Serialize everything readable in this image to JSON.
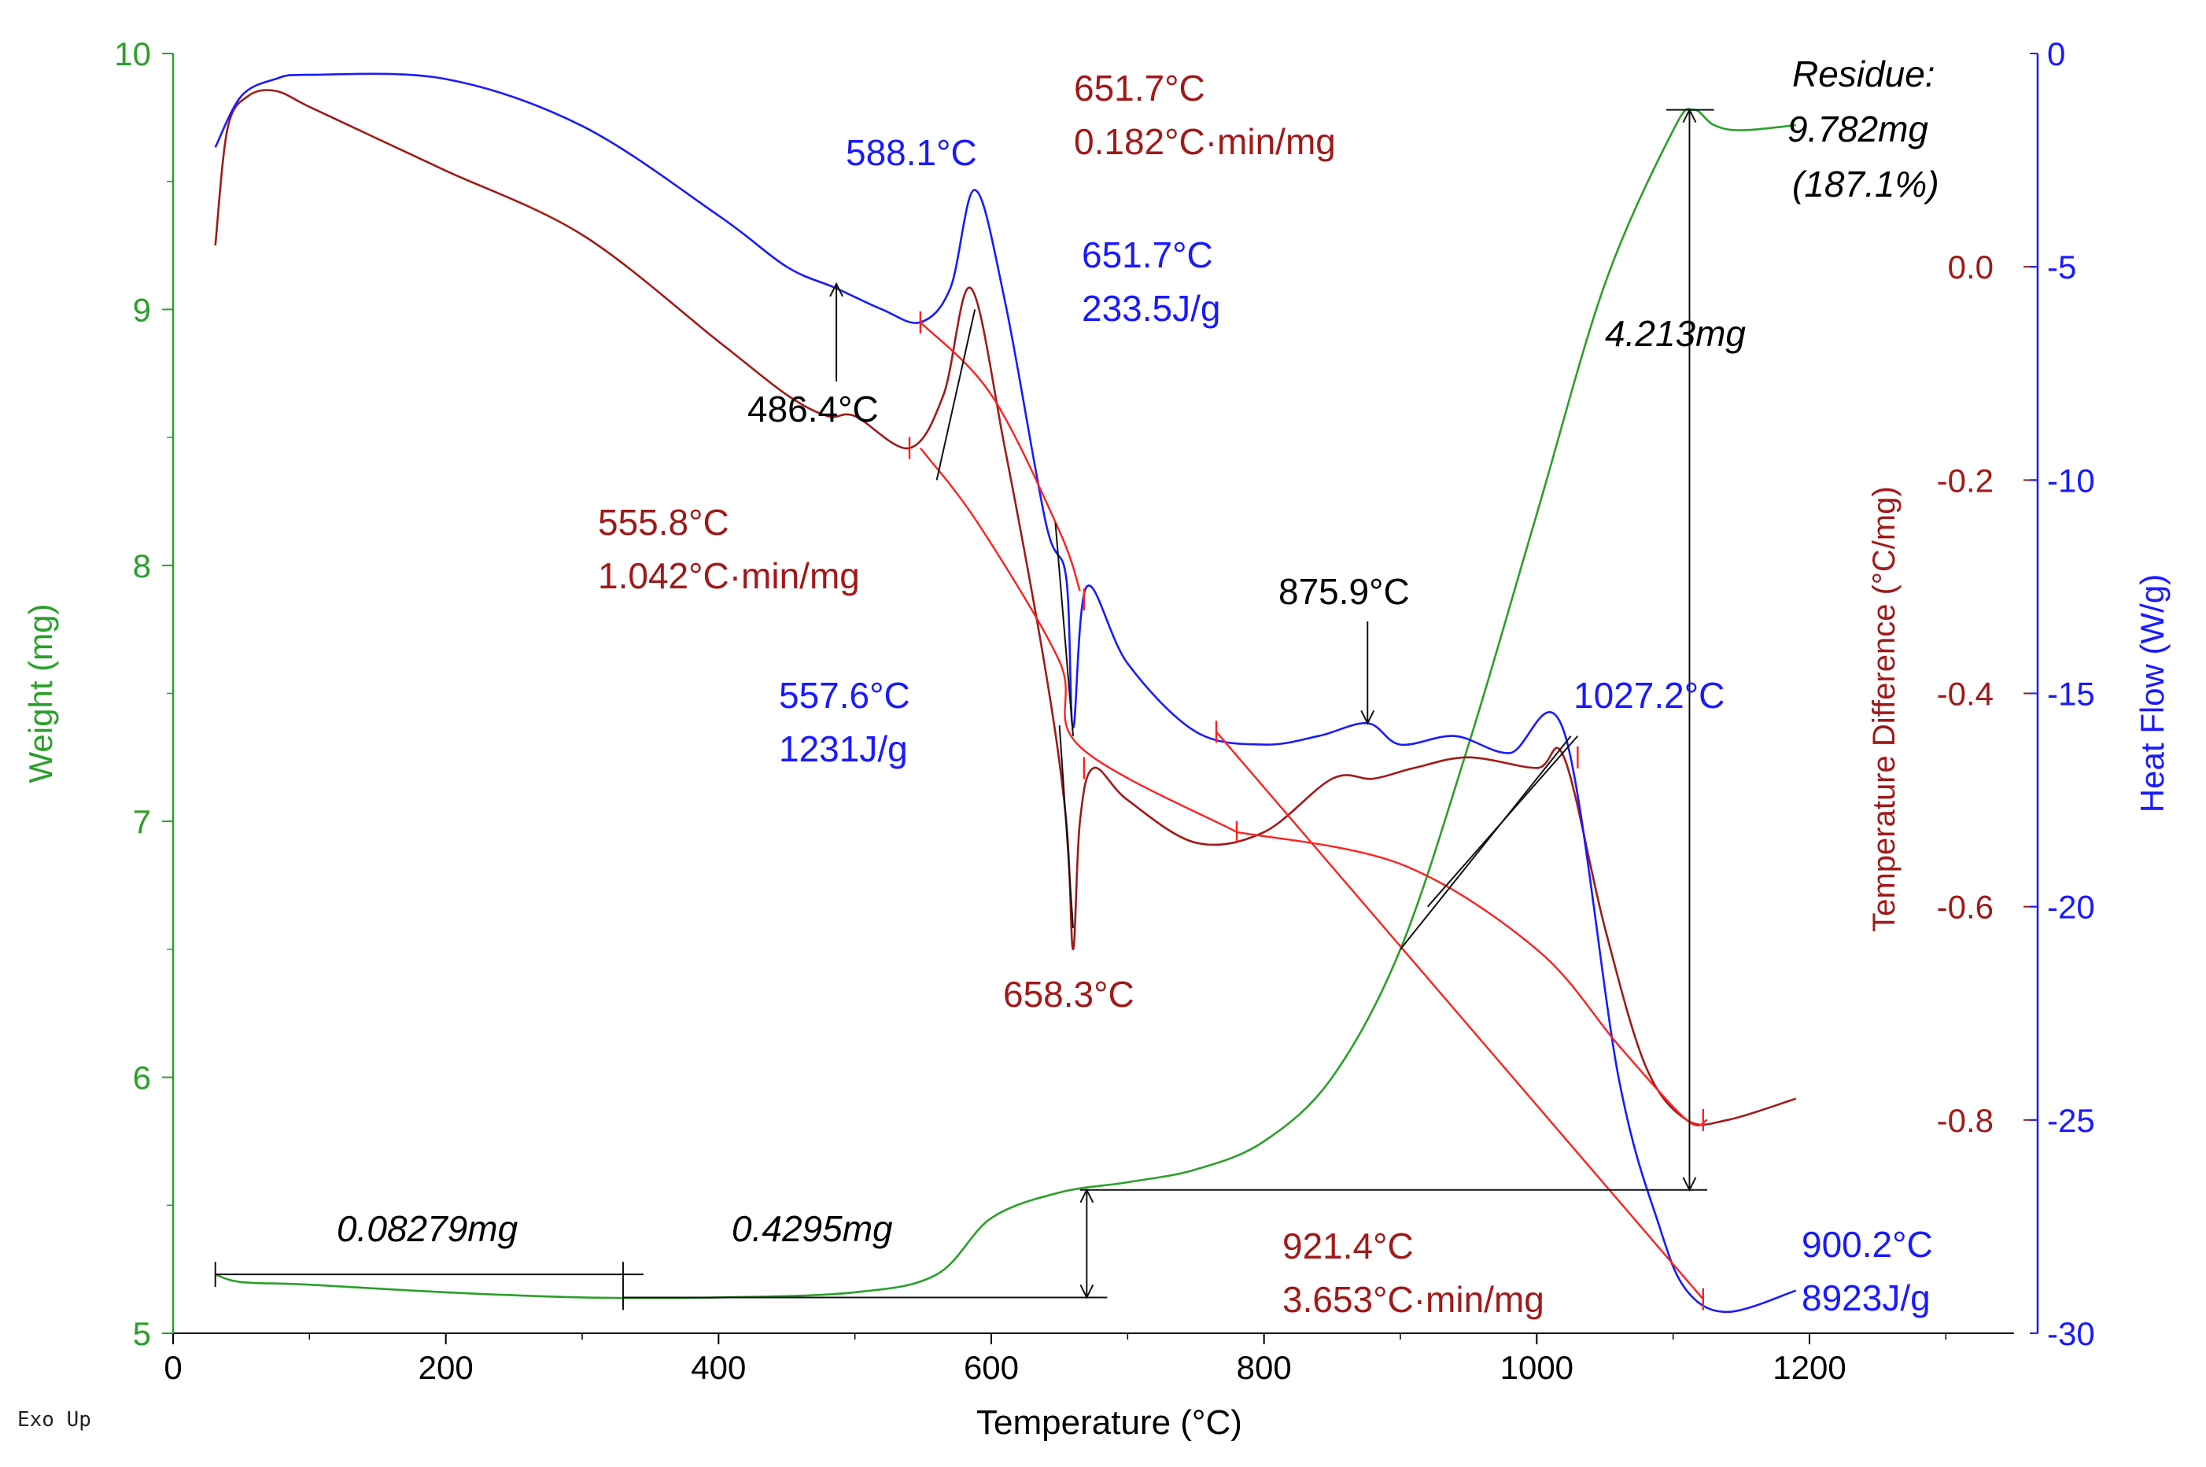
{
  "chart_data": {
    "type": "line",
    "title": "",
    "xlabel": "Temperature (°C)",
    "xlim": [
      0,
      1350
    ],
    "xticks": [
      0,
      200,
      400,
      600,
      800,
      1000,
      1200
    ],
    "y_axes": [
      {
        "id": "weight",
        "label": "Weight (mg)",
        "side": "left",
        "color": "#2aa02a",
        "range": [
          5,
          10
        ],
        "ticks": [
          5,
          6,
          7,
          8,
          9,
          10
        ]
      },
      {
        "id": "tempdiff",
        "label": "Temperature Difference (°C/mg)",
        "side": "right-inner",
        "color": "#a01a1a",
        "range": [
          -1.0,
          0.2
        ],
        "ticks": [
          -0.8,
          -0.6,
          -0.4,
          -0.2,
          0.0
        ]
      },
      {
        "id": "heatflow",
        "label": "Heat Flow (W/g)",
        "side": "right-outer",
        "color": "#1a1aff",
        "range": [
          -30,
          0
        ],
        "ticks": [
          -30,
          -25,
          -20,
          -15,
          -10,
          -5,
          0
        ]
      }
    ],
    "series": [
      {
        "name": "Weight",
        "axis": "weight",
        "color": "#2aa02a",
        "x": [
          31,
          50,
          100,
          200,
          300,
          400,
          500,
          560,
          600,
          650,
          700,
          750,
          800,
          850,
          900,
          950,
          1000,
          1050,
          1100,
          1115,
          1130,
          1150,
          1190
        ],
        "y": [
          5.23,
          5.2,
          5.19,
          5.16,
          5.14,
          5.14,
          5.16,
          5.23,
          5.45,
          5.55,
          5.59,
          5.64,
          5.75,
          6.0,
          6.5,
          7.3,
          8.2,
          9.1,
          9.7,
          9.78,
          9.72,
          9.7,
          9.72
        ]
      },
      {
        "name": "Temperature Difference",
        "axis": "tempdiff",
        "color": "#a01a1a",
        "x": [
          31,
          40,
          55,
          75,
          100,
          150,
          200,
          300,
          400,
          450,
          480,
          500,
          540,
          565,
          585,
          610,
          640,
          655,
          660,
          665,
          675,
          700,
          750,
          800,
          850,
          880,
          910,
          950,
          1000,
          1020,
          1050,
          1080,
          1110,
          1140,
          1190
        ],
        "y": [
          0.02,
          0.13,
          0.16,
          0.165,
          0.15,
          0.12,
          0.09,
          0.03,
          -0.07,
          -0.12,
          -0.14,
          -0.14,
          -0.17,
          -0.12,
          -0.02,
          -0.17,
          -0.38,
          -0.52,
          -0.64,
          -0.52,
          -0.47,
          -0.5,
          -0.54,
          -0.53,
          -0.48,
          -0.48,
          -0.47,
          -0.46,
          -0.47,
          -0.46,
          -0.62,
          -0.75,
          -0.8,
          -0.8,
          -0.78
        ]
      },
      {
        "name": "Heat Flow",
        "axis": "heatflow",
        "color": "#1a1aff",
        "x": [
          31,
          50,
          75,
          100,
          200,
          300,
          400,
          450,
          486,
          520,
          548,
          570,
          588,
          610,
          640,
          655,
          660,
          670,
          700,
          750,
          800,
          840,
          876,
          900,
          940,
          980,
          1020,
          1060,
          1090,
          1110,
          1140,
          1190
        ],
        "y": [
          -2.2,
          -1.0,
          -0.6,
          -0.5,
          -0.6,
          -1.7,
          -3.8,
          -5.0,
          -5.5,
          -6.0,
          -6.3,
          -5.5,
          -3.2,
          -5.8,
          -11.0,
          -12.3,
          -15.8,
          -12.5,
          -14.3,
          -15.9,
          -16.2,
          -16.0,
          -15.7,
          -16.2,
          -16.0,
          -16.4,
          -15.9,
          -24.0,
          -27.5,
          -29.0,
          -29.5,
          -29.0
        ]
      }
    ],
    "annotations": [
      {
        "text": "651.7°C",
        "color": "#a01a1a"
      },
      {
        "text": "0.182°C·min/mg",
        "color": "#a01a1a"
      },
      {
        "text": "588.1°C",
        "color": "#1a1aff"
      },
      {
        "text": "651.7°C",
        "color": "#1a1aff"
      },
      {
        "text": "233.5J/g",
        "color": "#1a1aff"
      },
      {
        "text": "486.4°C",
        "color": "#000000"
      },
      {
        "text": "555.8°C",
        "color": "#a01a1a"
      },
      {
        "text": "1.042°C·min/mg",
        "color": "#a01a1a"
      },
      {
        "text": "557.6°C",
        "color": "#1a1aff"
      },
      {
        "text": "1231J/g",
        "color": "#1a1aff"
      },
      {
        "text": "875.9°C",
        "color": "#000000"
      },
      {
        "text": "1027.2°C",
        "color": "#1a1aff"
      },
      {
        "text": "658.3°C",
        "color": "#a01a1a"
      },
      {
        "text": "921.4°C",
        "color": "#a01a1a"
      },
      {
        "text": "3.653°C·min/mg",
        "color": "#a01a1a"
      },
      {
        "text": "900.2°C",
        "color": "#1a1aff"
      },
      {
        "text": "8923J/g",
        "color": "#1a1aff"
      },
      {
        "text": "0.08279mg",
        "color": "#000000"
      },
      {
        "text": "0.4295mg",
        "color": "#000000"
      },
      {
        "text": "4.213mg",
        "color": "#000000"
      },
      {
        "text": "Residue:",
        "color": "#000000"
      },
      {
        "text": "9.782mg",
        "color": "#000000"
      },
      {
        "text": "(187.1%)",
        "color": "#000000"
      }
    ],
    "footer_note": "Exo Up"
  }
}
